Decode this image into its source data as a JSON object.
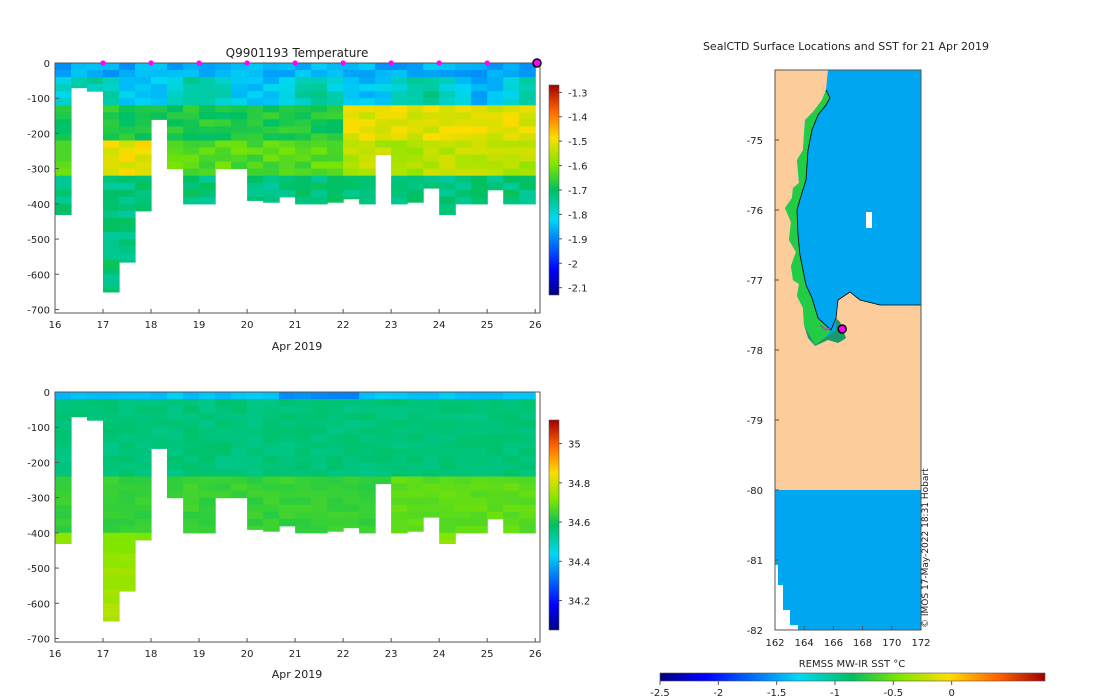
{
  "chart_data": [
    {
      "type": "heatmap",
      "title": "Q9901193  Temperature",
      "xlabel": "Apr 2019",
      "ylabel": "",
      "x_ticks": [
        "16",
        "17",
        "18",
        "19",
        "20",
        "21",
        "22",
        "23",
        "24",
        "25",
        "26"
      ],
      "xlim": [
        16,
        26.1
      ],
      "y_ticks": [
        "0",
        "-100",
        "-200",
        "-300",
        "-400",
        "-500",
        "-600",
        "-700"
      ],
      "ylim": [
        -710,
        0
      ],
      "colorbar_ticks": [
        "-1.3",
        "-1.4",
        "-1.5",
        "-1.6",
        "-1.7",
        "-1.8",
        "-1.9",
        "-2",
        "-2.1"
      ],
      "colorbar_range": [
        -2.13,
        -1.27
      ],
      "surface_markers_days": [
        17,
        18,
        19,
        20,
        21,
        22,
        23,
        24,
        25
      ],
      "profile_max_depth": [
        -430,
        -70,
        -80,
        -650,
        -565,
        -420,
        -160,
        -300,
        -400,
        -400,
        -300,
        -300,
        -390,
        -395,
        -380,
        -400,
        -400,
        -395,
        -385,
        -400,
        -260,
        -400,
        -395,
        -355,
        -430,
        -400,
        -400,
        -360,
        -400,
        -400
      ]
    },
    {
      "type": "heatmap",
      "title": "",
      "xlabel": "Apr 2019",
      "ylabel": "",
      "x_ticks": [
        "16",
        "17",
        "18",
        "19",
        "20",
        "21",
        "22",
        "23",
        "24",
        "25",
        "26"
      ],
      "xlim": [
        16,
        26.1
      ],
      "y_ticks": [
        "0",
        "-100",
        "-200",
        "-300",
        "-400",
        "-500",
        "-600",
        "-700"
      ],
      "ylim": [
        -710,
        0
      ],
      "colorbar_ticks": [
        "35",
        "34.8",
        "34.6",
        "34.4",
        "34.2"
      ],
      "colorbar_range": [
        34.05,
        35.12
      ]
    },
    {
      "type": "heatmap",
      "title": "SealCTD Surface Locations and SST for 21 Apr 2019",
      "xlabel": "",
      "ylabel": "",
      "x_ticks": [
        "162",
        "164",
        "166",
        "168",
        "170",
        "172"
      ],
      "xlim": [
        162,
        172
      ],
      "y_ticks": [
        "-75",
        "-76",
        "-77",
        "-78",
        "-79",
        "-80",
        "-81",
        "-82"
      ],
      "ylim": [
        -82,
        -74
      ],
      "colorbar_label": "REMSS MW-IR SST °C",
      "colorbar_ticks": [
        "-2.5",
        "-2",
        "-1.5",
        "-1",
        "-0.5",
        "0"
      ],
      "colorbar_range": [
        -2.5,
        0.8
      ],
      "seal_location": {
        "lon": 166.6,
        "lat": -77.7
      },
      "credit": "© IMOS 17-May-2022 18:31 Hobart"
    }
  ]
}
